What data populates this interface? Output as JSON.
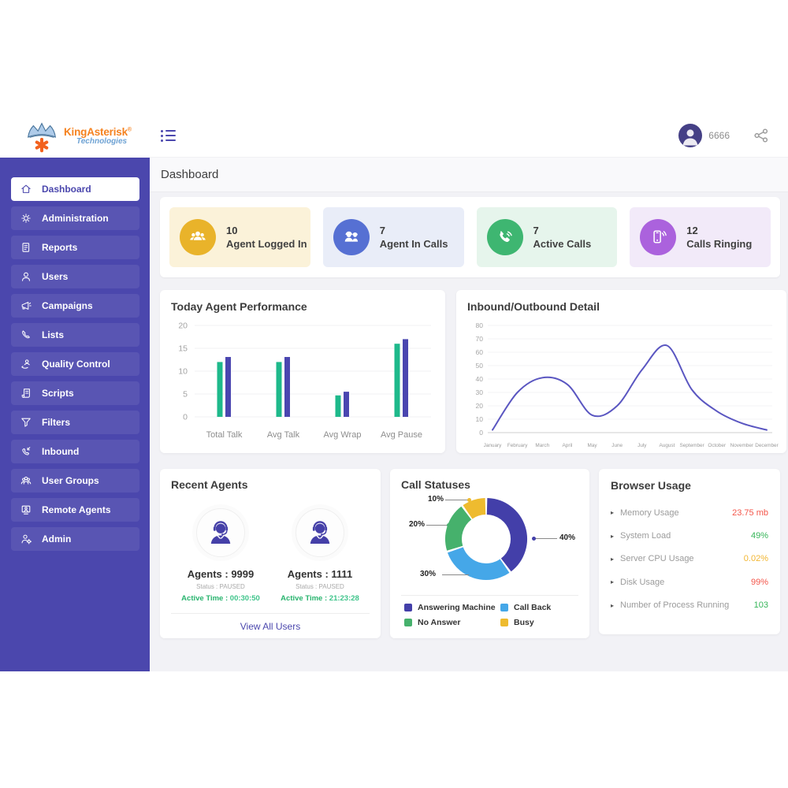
{
  "brand": {
    "name": "KingAsterisk",
    "registered": "®",
    "tagline": "Technologies"
  },
  "topbar": {
    "user_label": "6666"
  },
  "page_title": "Dashboard",
  "sidebar": {
    "items": [
      {
        "label": "Dashboard",
        "icon": "home-icon",
        "active": true
      },
      {
        "label": "Administration",
        "icon": "admin-gear-icon",
        "active": false
      },
      {
        "label": "Reports",
        "icon": "report-icon",
        "active": false
      },
      {
        "label": "Users",
        "icon": "user-icon",
        "active": false
      },
      {
        "label": "Campaigns",
        "icon": "megaphone-icon",
        "active": false
      },
      {
        "label": "Lists",
        "icon": "phone-icon",
        "active": false
      },
      {
        "label": "Quality Control",
        "icon": "quality-icon",
        "active": false
      },
      {
        "label": "Scripts",
        "icon": "script-icon",
        "active": false
      },
      {
        "label": "Filters",
        "icon": "filter-icon",
        "active": false
      },
      {
        "label": "Inbound",
        "icon": "inbound-phone-icon",
        "active": false
      },
      {
        "label": "User Groups",
        "icon": "user-group-icon",
        "active": false
      },
      {
        "label": "Remote Agents",
        "icon": "remote-agent-icon",
        "active": false
      },
      {
        "label": "Admin",
        "icon": "admin-user-icon",
        "active": false
      }
    ]
  },
  "stats": [
    {
      "value": "10",
      "label": "Agent Logged In",
      "icon": "agents-group-icon",
      "card_bg": "#fbf2d9",
      "icon_bg": "#e9b32a"
    },
    {
      "value": "7",
      "label": "Agent In Calls",
      "icon": "agents-headset-icon",
      "card_bg": "#e9edf8",
      "icon_bg": "#5670d3"
    },
    {
      "value": "7",
      "label": "Active Calls",
      "icon": "phone-call-icon",
      "card_bg": "#e6f5ec",
      "icon_bg": "#3eb671"
    },
    {
      "value": "12",
      "label": "Calls Ringing",
      "icon": "mobile-ringing-icon",
      "card_bg": "#f2eaf9",
      "icon_bg": "#ab62dd"
    }
  ],
  "chart_data": [
    {
      "type": "bar",
      "title": "Today Agent Performance",
      "categories": [
        "Total Talk",
        "Avg Talk",
        "Avg Wrap",
        "Avg Pause"
      ],
      "series": [
        {
          "color": "#1eb98b",
          "values": [
            12,
            12,
            4.7,
            16
          ]
        },
        {
          "color": "#4a46b0",
          "values": [
            13.1,
            13.1,
            5.5,
            17
          ]
        }
      ],
      "ylim": [
        0,
        20
      ],
      "yticks": [
        0,
        5,
        10,
        15,
        20
      ],
      "grid": true,
      "legend": "none"
    },
    {
      "type": "line",
      "title": "Inbound/Outbound Detail",
      "x": [
        "January",
        "February",
        "March",
        "April",
        "May",
        "June",
        "July",
        "August",
        "September",
        "October",
        "November",
        "December"
      ],
      "values": [
        2,
        30,
        41,
        36,
        13,
        20,
        47,
        65,
        32,
        16,
        7,
        2
      ],
      "color": "#5a56c1",
      "ylim": [
        0,
        80
      ],
      "yticks": [
        0,
        10,
        20,
        30,
        40,
        50,
        60,
        70,
        80
      ],
      "grid": true,
      "legend": "none"
    },
    {
      "type": "pie",
      "title": "Call Statuses",
      "donut": true,
      "labels": [
        "Answering Machine",
        "Call Back",
        "No Answer",
        "Busy"
      ],
      "values": [
        40,
        30,
        20,
        10
      ],
      "colors": [
        "#433fa9",
        "#45a7e8",
        "#46b16c",
        "#eebb2f"
      ],
      "legend_position": "bottom"
    }
  ],
  "recent_agents": {
    "title": "Recent Agents",
    "agents": [
      {
        "name": "Agents : 9999",
        "status": "Status : PAUSED",
        "active_label": "Active Time :",
        "active_time": "00:30:50"
      },
      {
        "name": "Agents : 1111",
        "status": "Status : PAUSED",
        "active_label": "Active Time :",
        "active_time": "21:23:28"
      }
    ],
    "footer_link": "View All Users"
  },
  "browser_usage": {
    "title": "Browser Usage",
    "rows": [
      {
        "label": "Memory Usage",
        "value": "23.75 mb",
        "color": "#f4564a"
      },
      {
        "label": "System Load",
        "value": "49%",
        "color": "#35b558"
      },
      {
        "label": "Server CPU Usage",
        "value": "0.02%",
        "color": "#f2b632"
      },
      {
        "label": "Disk Usage",
        "value": "99%",
        "color": "#f4564a"
      },
      {
        "label": "Number of Process Running",
        "value": "103",
        "color": "#35b558"
      }
    ]
  }
}
